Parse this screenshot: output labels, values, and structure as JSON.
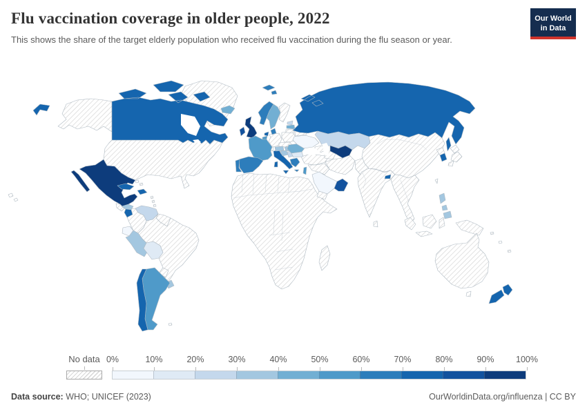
{
  "header": {
    "title": "Flu vaccination coverage in older people, 2022",
    "subtitle": "This shows the share of the target elderly population who received flu vaccination during the flu season or year.",
    "logo_line1": "Our World",
    "logo_line2": "in Data",
    "logo_bg": "#152D4F",
    "logo_accent": "#D0342C"
  },
  "legend": {
    "no_data_label": "No data",
    "ticks": [
      "0%",
      "10%",
      "20%",
      "30%",
      "40%",
      "50%",
      "60%",
      "70%",
      "80%",
      "90%",
      "100%"
    ],
    "colors": [
      "#f2f7fd",
      "#dfeaf5",
      "#c4d8ec",
      "#a3c7e0",
      "#72afd3",
      "#4f9ac9",
      "#2d7dbb",
      "#1565ae",
      "#12529e",
      "#0d3c7c"
    ]
  },
  "footer": {
    "source_label": "Data source:",
    "source_value": "WHO; UNICEF (2023)",
    "credit": "OurWorldinData.org/influenza | CC BY"
  },
  "map": {
    "ocean_color": "#ffffff",
    "border_color": "#aeb9c2",
    "no_data_stripe_color": "#d8d8d8",
    "country_colors": {
      "canada": "#1565ae",
      "mexico": "#0d3c7c",
      "cuba": "#1565ae",
      "dominican-republic": "#1565ae",
      "honduras": "#a3c7e0",
      "nicaragua": "#1565ae",
      "venezuela": "#c4d8ec",
      "ecuador": "#f2f7fd",
      "peru": "#a3c7e0",
      "bolivia": "#dfeaf5",
      "uruguay": "#a3c7e0",
      "argentina": "#4f9ac9",
      "chile": "#1565ae",
      "iceland": "#72afd3",
      "united-kingdom": "#0d3c7c",
      "ireland": "#12529e",
      "norway": "#2d7dbb",
      "sweden": "#72afd3",
      "denmark": "#2d7dbb",
      "netherlands": "#1565ae",
      "belgium": "#4f9ac9",
      "france": "#4f9ac9",
      "spain": "#2d7dbb",
      "portugal": "#2d7dbb",
      "italy": "#1565ae",
      "greece": "#2d7dbb",
      "austria": "#a3c7e0",
      "hungary": "#a3c7e0",
      "croatia": "#a3c7e0",
      "serbia": "#c4d8ec",
      "bulgaria": "#dfeaf5",
      "romania": "#72afd3",
      "estonia": "#c4d8ec",
      "latvia": "#72afd3",
      "ukraine": "#f2f7fd",
      "russia": "#1565ae",
      "kazakhstan": "#c4d8ec",
      "uzbekistan": "#0d3c7c",
      "israel": "#4f9ac9",
      "saudi-arabia": "#f2f7fd",
      "oman": "#12529e",
      "south-korea": "#1565ae",
      "bhutan": "#1565ae",
      "philippines": "#a3c7e0",
      "new-zealand": "#1565ae"
    }
  },
  "chart_data": {
    "type": "choropleth_map",
    "title": "Flu vaccination coverage in older people, 2022",
    "unit": "% of target elderly population vaccinated",
    "color_scale": {
      "ticks": [
        "0%",
        "10%",
        "20%",
        "30%",
        "40%",
        "50%",
        "60%",
        "70%",
        "80%",
        "90%",
        "100%"
      ],
      "colors": [
        "#f2f7fd",
        "#dfeaf5",
        "#c4d8ec",
        "#a3c7e0",
        "#72afd3",
        "#4f9ac9",
        "#2d7dbb",
        "#1565ae",
        "#12529e",
        "#0d3c7c"
      ],
      "no_data_style": "gray diagonal hatching"
    },
    "values": {
      "Canada": "70-80%",
      "Mexico": "90-100%",
      "Cuba": "70-80%",
      "Dominican Republic": "70-80%",
      "Honduras": "30-40%",
      "Nicaragua": "70-80%",
      "Venezuela": "20-30%",
      "Ecuador": "0-10%",
      "Peru": "30-40%",
      "Bolivia": "10-20%",
      "Uruguay": "30-40%",
      "Argentina": "50-60%",
      "Chile": "70-80%",
      "Iceland": "40-50%",
      "United Kingdom": "90-100%",
      "Ireland": "80-90%",
      "Norway": "60-70%",
      "Sweden": "40-50%",
      "Denmark": "60-70%",
      "Netherlands": "70-80%",
      "Belgium": "50-60%",
      "France": "50-60%",
      "Spain": "60-70%",
      "Portugal": "60-70%",
      "Italy": "70-80%",
      "Greece": "60-70%",
      "Austria": "30-40%",
      "Hungary": "30-40%",
      "Croatia": "30-40%",
      "Serbia": "20-30%",
      "Bulgaria": "10-20%",
      "Romania": "40-50%",
      "Estonia": "20-30%",
      "Latvia": "40-50%",
      "Ukraine": "0-10%",
      "Russia": "70-80%",
      "Kazakhstan": "20-30%",
      "Uzbekistan": "90-100%",
      "Israel": "50-60%",
      "Saudi Arabia": "0-10%",
      "Oman": "80-90%",
      "South Korea": "70-80%",
      "Bhutan": "70-80%",
      "Philippines": "30-40%",
      "New Zealand": "70-80%"
    },
    "no_data": [
      "United States",
      "Greenland",
      "Guatemala",
      "Costa Rica",
      "Panama",
      "Colombia",
      "Guyana",
      "Suriname",
      "Brazil",
      "Paraguay",
      "Germany",
      "Poland",
      "Finland",
      "Lithuania",
      "Belarus",
      "Switzerland",
      "Czechia",
      "Slovakia",
      "Turkey",
      "Iran",
      "Iraq",
      "Syria",
      "Yemen",
      "Afghanistan",
      "Pakistan",
      "India",
      "China",
      "Mongolia",
      "North Korea",
      "Japan",
      "Myanmar",
      "Thailand",
      "Vietnam",
      "Indonesia",
      "Papua New Guinea",
      "Australia",
      "Madagascar",
      "most of Africa"
    ]
  }
}
